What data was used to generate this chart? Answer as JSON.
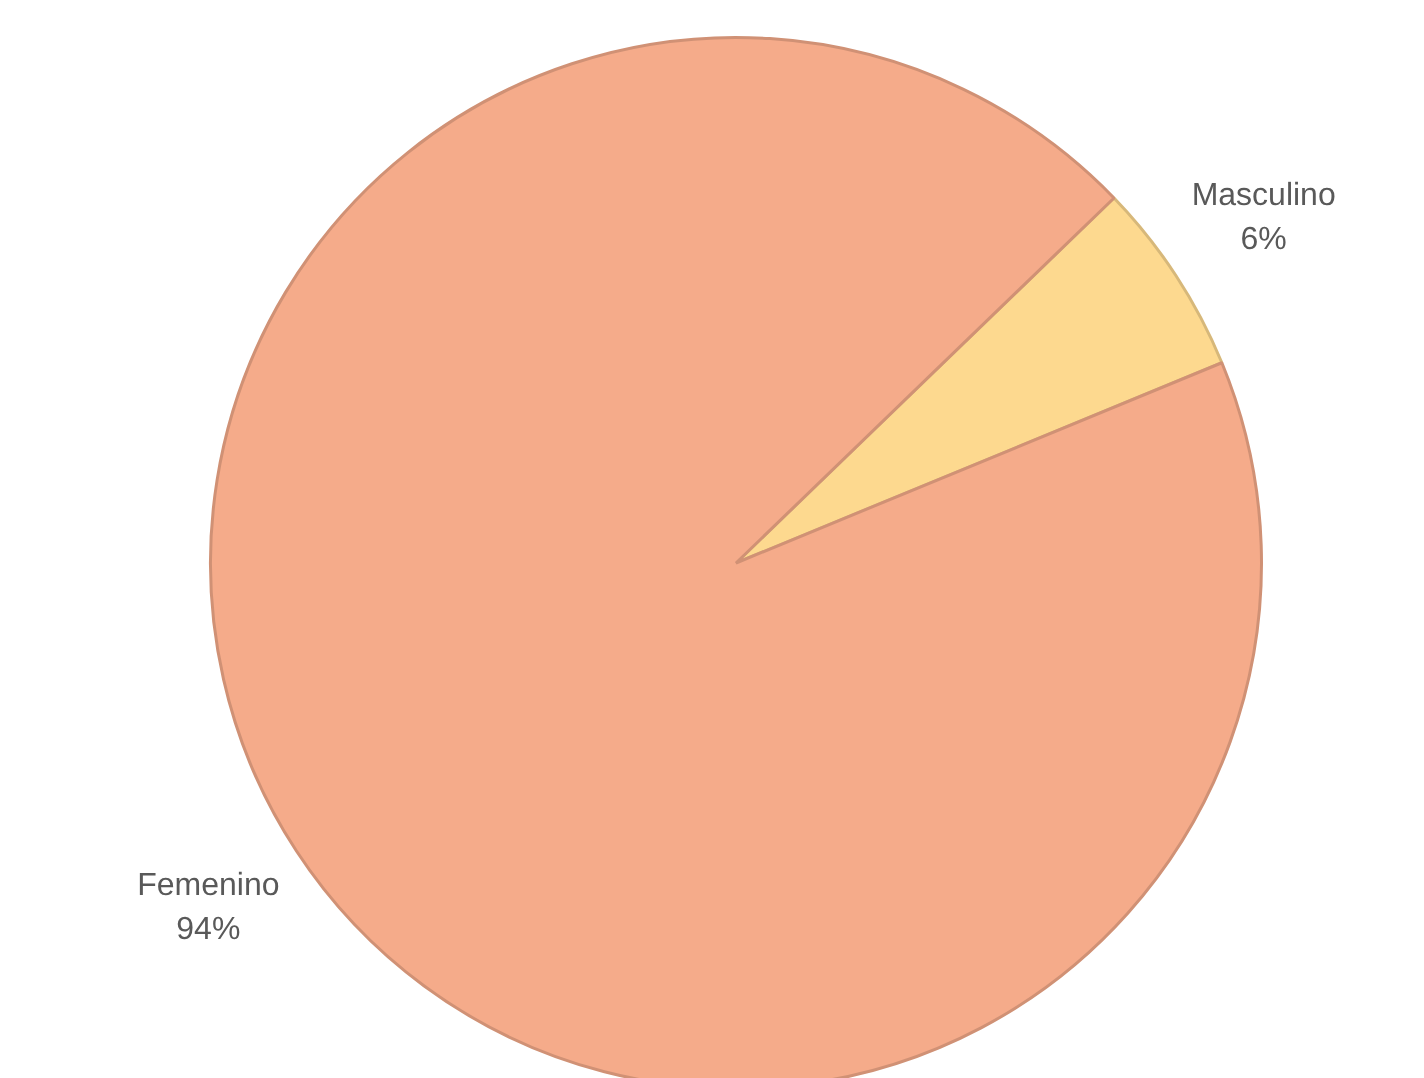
{
  "chart_data": {
    "type": "pie",
    "categories": [
      "Masculino",
      "Femenino"
    ],
    "values": [
      6,
      94
    ],
    "value_labels": [
      "6%",
      "94%"
    ],
    "colors": [
      "#fdd98f",
      "#f5ab8a"
    ],
    "legend": false
  }
}
